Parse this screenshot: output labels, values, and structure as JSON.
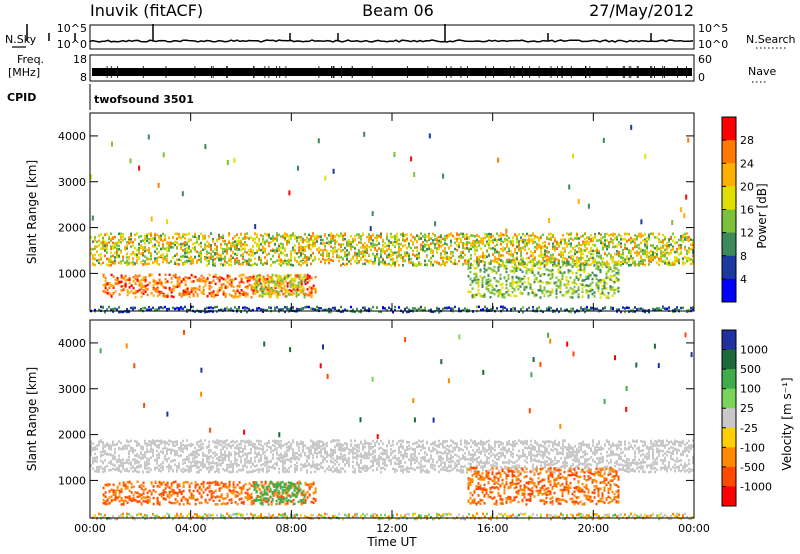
{
  "header": {
    "title": "Inuvik (fitACF)",
    "beam": "Beam 06",
    "date": "27/May/2012"
  },
  "aux_panels": {
    "nsky_label": "N.Sky",
    "nsky_ticks": [
      "10^5",
      "10^0"
    ],
    "nsearch_label": "N.Search",
    "nsearch_ticks": [
      "10^5",
      "10^0"
    ],
    "freq_label_1": "Freq.",
    "freq_label_2": "[MHz]",
    "freq_ticks": [
      "18",
      "8"
    ],
    "nave_label": "Nave",
    "nave_ticks": [
      "60",
      "0"
    ],
    "cpid_label": "CPID",
    "cpid_value": "twofsound 3501"
  },
  "panels": {
    "ylabel": "Slant Range [km]",
    "yticks": [
      "4000",
      "3000",
      "2000",
      "1000"
    ],
    "xticks": [
      "00:00",
      "04:00",
      "08:00",
      "12:00",
      "16:00",
      "20:00",
      "00:00"
    ],
    "xlabel": "Time UT"
  },
  "power_bar": {
    "label": "Power [dB]",
    "ticks": [
      "28",
      "24",
      "20",
      "16",
      "12",
      "8",
      "4"
    ],
    "colors": [
      "#ff0000",
      "#ff7a00",
      "#ffb000",
      "#e0e000",
      "#7ac23a",
      "#3a8a5a",
      "#1a3aa0",
      "#0000ff"
    ]
  },
  "velocity_bar": {
    "label": "Velocity [m s⁻¹]",
    "ticks": [
      "1000",
      "500",
      "100",
      "25",
      "-25",
      "-100",
      "-500",
      "-1000"
    ],
    "colors": [
      "#2030a0",
      "#1a6a3a",
      "#3fae4a",
      "#7ad65a",
      "#c8c8c8",
      "#ffd000",
      "#ff8a00",
      "#ff4a00",
      "#ff0000"
    ]
  },
  "chart_data": {
    "type": "heatmap",
    "panels": [
      "Power",
      "Velocity"
    ],
    "x_range_hours": [
      0,
      24
    ],
    "y_range_km": [
      180,
      4500
    ],
    "echo_bands": [
      {
        "t_start_h": 0.0,
        "t_end_h": 24.0,
        "range_low_km": 1200,
        "range_high_km": 1900,
        "power_db": 18,
        "velocity": 0
      },
      {
        "t_start_h": 0.5,
        "t_end_h": 9.0,
        "range_low_km": 500,
        "range_high_km": 1000,
        "power_db": 26,
        "velocity": -300
      },
      {
        "t_start_h": 6.5,
        "t_end_h": 8.5,
        "range_low_km": 500,
        "range_high_km": 1000,
        "power_db": 16,
        "velocity": 150
      },
      {
        "t_start_h": 15.0,
        "t_end_h": 21.0,
        "range_low_km": 500,
        "range_high_km": 1300,
        "power_db": 14,
        "velocity": -300
      },
      {
        "t_start_h": 0.0,
        "t_end_h": 24.0,
        "range_low_km": 180,
        "range_high_km": 300,
        "power_db": 8,
        "velocity": -20
      }
    ]
  }
}
